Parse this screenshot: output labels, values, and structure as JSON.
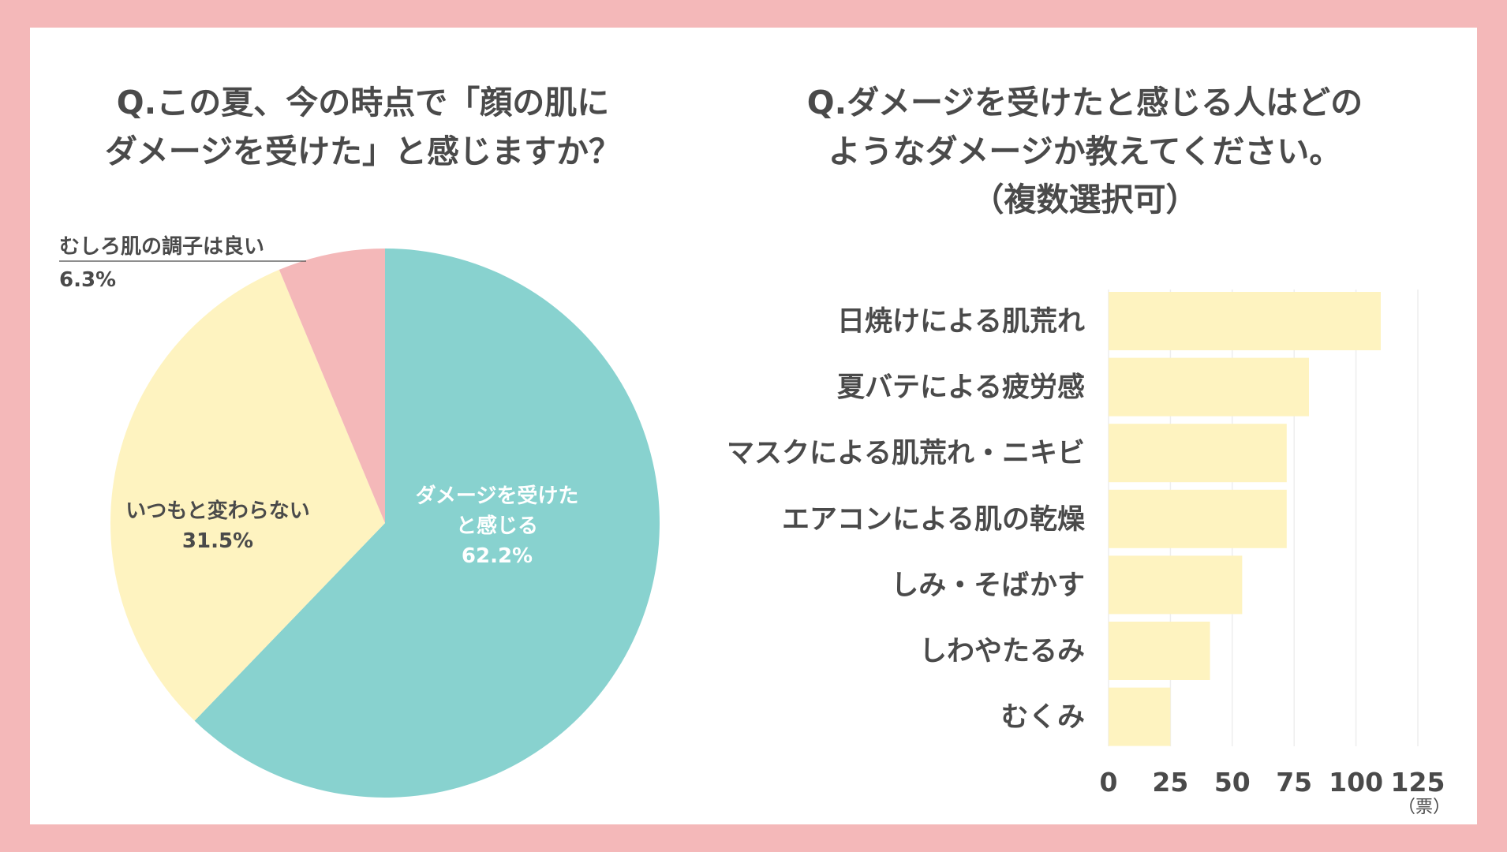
{
  "pie": {
    "title_line1": "Q.この夏、今の時点で「顔の肌に",
    "title_line2": "ダメージを受けた」と感じますか？"
  },
  "bar": {
    "title_line1": "Q.ダメージを受けたと感じる人はどの",
    "title_line2": "ようなダメージか教えてください。",
    "title_line3": "（複数選択可）",
    "unit": "（票）"
  },
  "chart_data": [
    {
      "type": "pie",
      "slices": [
        {
          "label_lines": [
            "ダメージを受けた",
            "と感じる"
          ],
          "value": 62.2,
          "value_text": "62.2%",
          "color": "#88d2cf",
          "text_color": "#ffffff"
        },
        {
          "label_lines": [
            "いつもと変わらない"
          ],
          "value": 31.5,
          "value_text": "31.5%",
          "color": "#fef3c0",
          "text_color": "#4a4a4a"
        },
        {
          "label_lines": [
            "むしろ肌の調子は良い"
          ],
          "value": 6.3,
          "value_text": "6.3%",
          "color": "#f4b8b9",
          "text_color": "#4a4a4a"
        }
      ]
    },
    {
      "type": "bar",
      "orientation": "horizontal",
      "categories": [
        "日焼けによる肌荒れ",
        "夏バテによる疲労感",
        "マスクによる肌荒れ・ニキビ",
        "エアコンによる肌の乾燥",
        "しみ・そばかす",
        "しわやたるみ",
        "むくみ"
      ],
      "values": [
        110,
        81,
        72,
        72,
        54,
        41,
        25
      ],
      "xlim": [
        0,
        125
      ],
      "xticks": [
        0,
        25,
        50,
        75,
        100,
        125
      ],
      "xlabel": "（票）",
      "bar_color": "#fef3c0",
      "grid": true
    }
  ]
}
